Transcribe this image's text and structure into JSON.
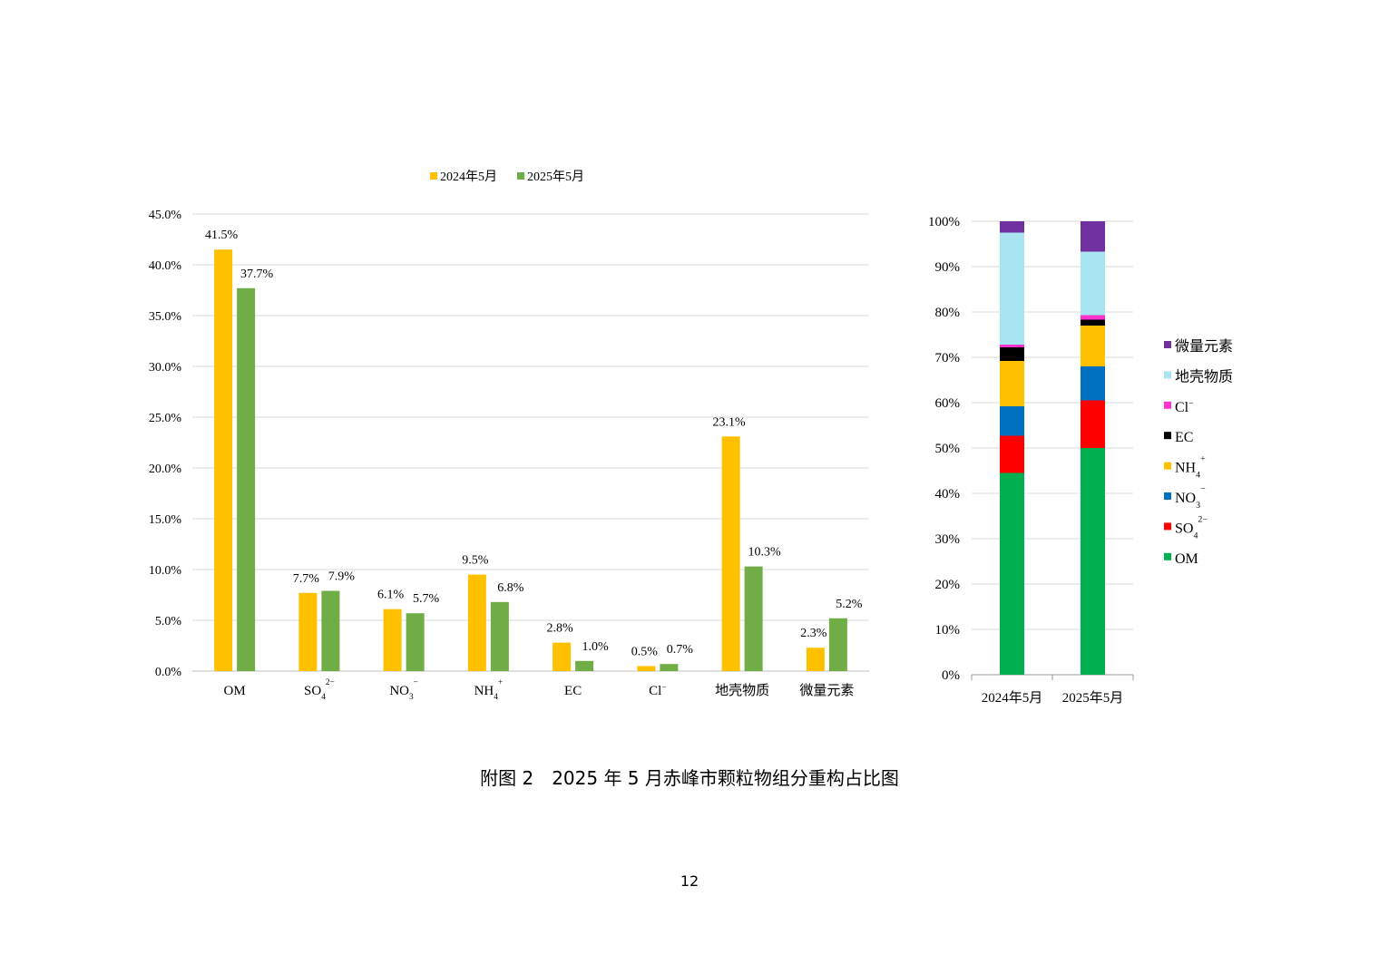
{
  "caption": "附图 2　2025 年 5 月赤峰市颗粒物组分重构占比图",
  "page_number": "12",
  "colors": {
    "series_2024": "#FFC000",
    "series_2025": "#70AD47",
    "grid": "#D9D9D9",
    "axis": "#BFBFBF"
  },
  "chart_data": [
    {
      "type": "bar",
      "legend_position": "top",
      "grid": true,
      "categories": [
        {
          "base": "OM",
          "sub": "",
          "sup": ""
        },
        {
          "base": "SO",
          "sub": "4",
          "sup": "2−"
        },
        {
          "base": "NO",
          "sub": "3",
          "sup": "−"
        },
        {
          "base": "NH",
          "sub": "4",
          "sup": "+"
        },
        {
          "base": "EC",
          "sub": "",
          "sup": ""
        },
        {
          "base": "Cl",
          "sub": "",
          "sup": "−"
        },
        {
          "base": "地壳物质",
          "sub": "",
          "sup": ""
        },
        {
          "base": "微量元素",
          "sub": "",
          "sup": ""
        }
      ],
      "series": [
        {
          "name": "2024年5月",
          "color": "#FFC000",
          "values": [
            41.5,
            7.7,
            6.1,
            9.5,
            2.8,
            0.5,
            23.1,
            2.3
          ],
          "labels": [
            "41.5%",
            "7.7%",
            "6.1%",
            "9.5%",
            "2.8%",
            "0.5%",
            "23.1%",
            "2.3%"
          ]
        },
        {
          "name": "2025年5月",
          "color": "#70AD47",
          "values": [
            37.7,
            7.9,
            5.7,
            6.8,
            1.0,
            0.7,
            10.3,
            5.2
          ],
          "labels": [
            "37.7%",
            "7.9%",
            "5.7%",
            "6.8%",
            "1.0%",
            "0.7%",
            "10.3%",
            "5.2%"
          ]
        }
      ],
      "ylim": [
        0,
        45
      ],
      "yticks": [
        0,
        5,
        10,
        15,
        20,
        25,
        30,
        35,
        40,
        45
      ],
      "ytick_labels": [
        "0.0%",
        "5.0%",
        "10.0%",
        "15.0%",
        "20.0%",
        "25.0%",
        "30.0%",
        "35.0%",
        "40.0%",
        "45.0%"
      ]
    },
    {
      "type": "bar",
      "stacked": "percent",
      "legend_position": "right",
      "grid": true,
      "categories": [
        "2024年5月",
        "2025年5月"
      ],
      "series": [
        {
          "name": {
            "base": "OM",
            "sub": "",
            "sup": ""
          },
          "color": "#00B050",
          "values": [
            44.5,
            50.0
          ]
        },
        {
          "name": {
            "base": "SO",
            "sub": "4",
            "sup": "2−"
          },
          "color": "#FF0000",
          "values": [
            8.2,
            10.5
          ]
        },
        {
          "name": {
            "base": "NO",
            "sub": "3",
            "sup": "−"
          },
          "color": "#0070C0",
          "values": [
            6.5,
            7.5
          ]
        },
        {
          "name": {
            "base": "NH",
            "sub": "4",
            "sup": "+"
          },
          "color": "#FFC000",
          "values": [
            10.0,
            9.0
          ]
        },
        {
          "name": {
            "base": "EC",
            "sub": "",
            "sup": ""
          },
          "color": "#000000",
          "values": [
            3.0,
            1.3
          ]
        },
        {
          "name": {
            "base": "Cl",
            "sub": "",
            "sup": "−"
          },
          "color": "#FF33CC",
          "values": [
            0.6,
            1.0
          ]
        },
        {
          "name": {
            "base": "地壳物质",
            "sub": "",
            "sup": ""
          },
          "color": "#A9E5F0",
          "values": [
            24.7,
            14.0
          ]
        },
        {
          "name": {
            "base": "微量元素",
            "sub": "",
            "sup": ""
          },
          "color": "#7030A0",
          "values": [
            2.5,
            6.7
          ]
        }
      ],
      "ylim": [
        0,
        100
      ],
      "yticks": [
        0,
        10,
        20,
        30,
        40,
        50,
        60,
        70,
        80,
        90,
        100
      ],
      "ytick_labels": [
        "0%",
        "10%",
        "20%",
        "30%",
        "40%",
        "50%",
        "60%",
        "70%",
        "80%",
        "90%",
        "100%"
      ]
    }
  ]
}
